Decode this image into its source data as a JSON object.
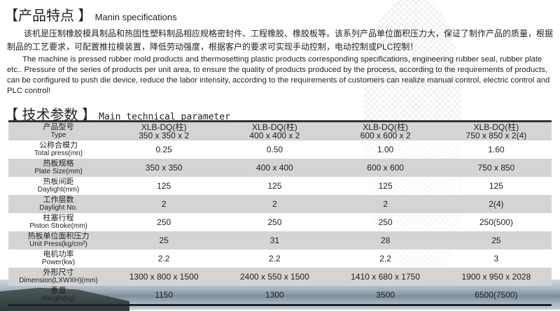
{
  "features": {
    "title_cn": "【产品特点 】",
    "title_en": "Manin specifications",
    "para_cn": "该机是压制橡胶模具制品和热固性塑料制品相应规格密封件、工程橡胶、橡胶板等。该系列产品单位面积压力大，保证了制作产品的质量，根据制品的工艺要求，可配置推拉模装置，降低劳动强度，根据客户的要求可实现手动控制，电动控制或PLC控制！",
    "para_en": "The machine is pressed rubber mold products and thermosetting plastic products corresponding specifications, engineering rubber seal, rubber plate etc.. Pressure of the series of products per unit area, to ensure the quality of products produced by the process, according to the requirements of products, can be configured to push die device, reduce the labor intensity, according to the requirements of customers can realize manual control, electric control and PLC control!"
  },
  "params": {
    "title_cn": "【 技术参数 】",
    "title_en": "Main  technical  parameter",
    "rows": [
      {
        "cn": "产品型号",
        "en": "Type",
        "v": [
          "XLB-DQ(柱)\n350 x 350 x 2",
          "XLB-DQ(柱)\n400 x 400 x 2",
          "XLB-DQ(柱)\n600 x 600 x 2",
          "XLB-DQ(柱)\n750 x 850 x 2(4)"
        ]
      },
      {
        "cn": "公称合模力",
        "en": "Total press(mn)",
        "v": [
          "0.25",
          "0.50",
          "1.00",
          "1.60"
        ]
      },
      {
        "cn": "热板规格",
        "en": "Plate Size(mm)",
        "v": [
          "350 x 350",
          "400 x 400",
          "600 x 600",
          "750 x 850"
        ]
      },
      {
        "cn": "热板间距",
        "en": "Daylight(mm)",
        "v": [
          "125",
          "125",
          "125",
          "125"
        ]
      },
      {
        "cn": "工作层数",
        "en": "Daylight No.",
        "v": [
          "2",
          "2",
          "2",
          "2(4)"
        ]
      },
      {
        "cn": "柱塞行程",
        "en": "Piston Stroke(mm)",
        "v": [
          "250",
          "250",
          "250",
          "250(500)"
        ]
      },
      {
        "cn": "热板单位面积压力",
        "en": "Unit Press(kg/cm²)",
        "v": [
          "25",
          "31",
          "28",
          "25"
        ]
      },
      {
        "cn": "电机功率",
        "en": "Power(kw)",
        "v": [
          "2.2",
          "2.2",
          "2.2",
          "3"
        ]
      },
      {
        "cn": "外形尺寸",
        "en": "Dimension(LXWXH)(mm)",
        "v": [
          "1300 x 800 x 1500",
          "2400 x 550 x 1500",
          "1410 x 680 x 1750",
          "1900 x 950 x 2028"
        ]
      },
      {
        "cn": "重量",
        "en": "Weight(kg)",
        "v": [
          "1150",
          "1300",
          "3500",
          "6500(7500)"
        ]
      }
    ]
  }
}
